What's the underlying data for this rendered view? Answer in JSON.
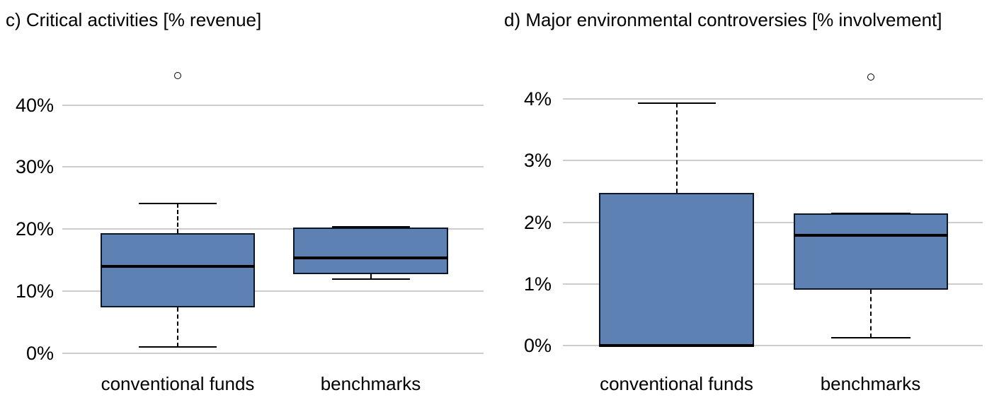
{
  "page": {
    "background": "#ffffff"
  },
  "colors": {
    "box_fill": "#5d81b3",
    "box_border": "#0c1626",
    "median": "#000000",
    "whisker": "#000000",
    "gridline": "#cdcdcd",
    "text": "#000000"
  },
  "chart_data": [
    {
      "type": "boxplot",
      "title": "c) Critical activities [% revenue]",
      "categories": [
        "conventional funds",
        "benchmarks"
      ],
      "ylabel": "% revenue",
      "y_ticks": [
        "0%",
        "10%",
        "20%",
        "30%",
        "40%"
      ],
      "y_tick_values": [
        0,
        10,
        20,
        30,
        40
      ],
      "ylim": [
        0,
        45
      ],
      "grid": true,
      "series": [
        {
          "category": "conventional funds",
          "min": 1.0,
          "q1": 7.4,
          "median": 14.0,
          "q3": 19.3,
          "max": 24.1,
          "outliers": [
            44.7
          ]
        },
        {
          "category": "benchmarks",
          "min": 11.9,
          "q1": 12.7,
          "median": 15.4,
          "q3": 20.2,
          "max": 20.4,
          "outliers": []
        }
      ]
    },
    {
      "type": "boxplot",
      "title": "d) Major environmental controversies [% involvement]",
      "categories": [
        "conventional funds",
        "benchmarks"
      ],
      "ylabel": "% involvement",
      "y_ticks": [
        "0%",
        "1%",
        "2%",
        "3%",
        "4%"
      ],
      "y_tick_values": [
        0,
        1,
        2,
        3,
        4
      ],
      "ylim": [
        0,
        4.5
      ],
      "grid": true,
      "series": [
        {
          "category": "conventional funds",
          "min": 0,
          "q1": 0,
          "median": 0,
          "q3": 2.48,
          "max": 3.93,
          "outliers": []
        },
        {
          "category": "benchmarks",
          "min": 0.13,
          "q1": 0.9,
          "median": 1.79,
          "q3": 2.14,
          "max": 2.14,
          "outliers": [
            4.35
          ]
        }
      ]
    }
  ]
}
